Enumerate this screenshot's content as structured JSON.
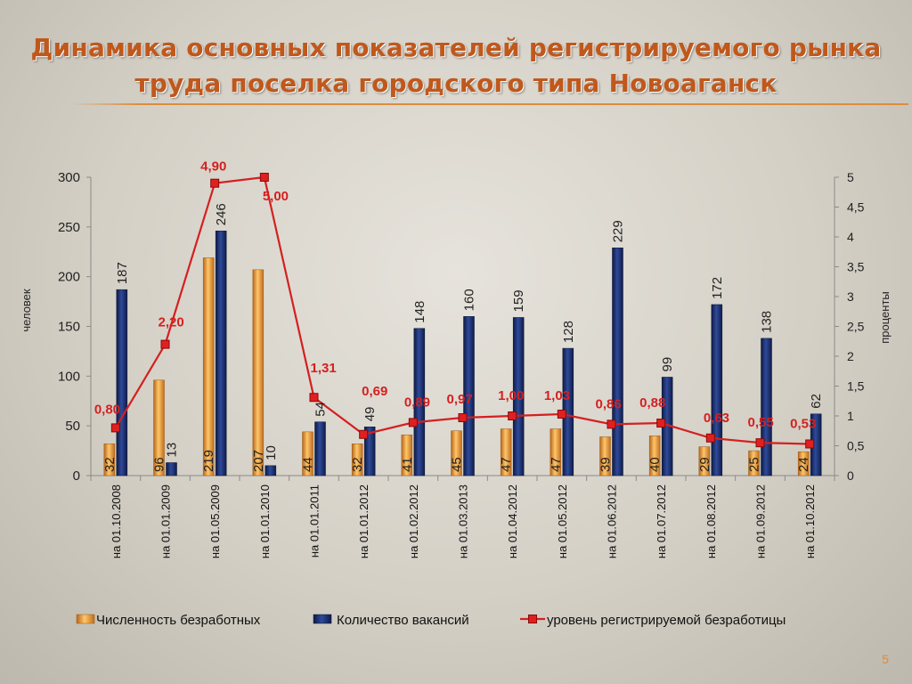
{
  "slide": {
    "title_line1": "Динамика основных показателей регистрируемого рынка",
    "title_line2": "труда поселка городского типа Новоаганск",
    "page_number": "5"
  },
  "chart_data": {
    "type": "bar",
    "categories": [
      "на 01.10.2008",
      "на 01.01.2009",
      "на 01.05.2009",
      "на 01.01.2010",
      "на 01.01.2011",
      "на 01.01.2012",
      "на 01.02.2012",
      "на 01.03.2013",
      "на 01.04.2012",
      "на 01.05.2012",
      "на 01.06.2012",
      "на 01.07.2012",
      "на 01.08.2012",
      "на 01.09.2012",
      "на 01.10.2012"
    ],
    "series": [
      {
        "name": "Численность безработных",
        "type": "bar",
        "axis": "left",
        "color": "#f0a030",
        "values": [
          32,
          96,
          219,
          207,
          44,
          32,
          41,
          45,
          47,
          47,
          39,
          40,
          29,
          25,
          24
        ]
      },
      {
        "name": "Количество вакансий",
        "type": "bar",
        "axis": "left",
        "color": "#1c2f6e",
        "values": [
          187,
          13,
          246,
          10,
          54,
          49,
          148,
          160,
          159,
          128,
          229,
          99,
          172,
          138,
          62
        ]
      },
      {
        "name": "уровень регистрируемой безработицы",
        "type": "line",
        "axis": "right",
        "color": "#d42020",
        "values": [
          0.8,
          2.2,
          4.9,
          5.0,
          1.31,
          0.69,
          0.89,
          0.97,
          1.0,
          1.03,
          0.86,
          0.88,
          0.63,
          0.55,
          0.53
        ],
        "labels": [
          "0,80",
          "2,20",
          "4,90",
          "5,00",
          "1,31",
          "0,69",
          "0,89",
          "0,97",
          "1,00",
          "1,03",
          "0,86",
          "0,88",
          "0,63",
          "0,55",
          "0,53"
        ]
      }
    ],
    "ylabel": "человек",
    "ylabel_right": "проценты",
    "ylim": [
      0,
      300
    ],
    "y_ticks": [
      "0",
      "50",
      "100",
      "150",
      "200",
      "250",
      "300"
    ],
    "ylim_right": [
      0,
      5
    ],
    "y_ticks_right": [
      "0",
      "0,5",
      "1",
      "1,5",
      "2",
      "2,5",
      "3",
      "3,5",
      "4",
      "4,5",
      "5"
    ],
    "legend_position": "bottom",
    "grid": false
  }
}
